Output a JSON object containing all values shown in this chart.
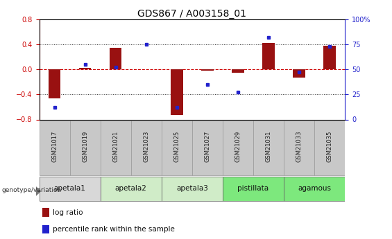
{
  "title": "GDS867 / A003158_01",
  "samples": [
    "GSM21017",
    "GSM21019",
    "GSM21021",
    "GSM21023",
    "GSM21025",
    "GSM21027",
    "GSM21029",
    "GSM21031",
    "GSM21033",
    "GSM21035"
  ],
  "log_ratio": [
    -0.46,
    0.02,
    0.34,
    0.0,
    -0.73,
    -0.02,
    -0.05,
    0.42,
    -0.13,
    0.38
  ],
  "percentile_rank": [
    12,
    55,
    52,
    75,
    12,
    35,
    27,
    82,
    47,
    73
  ],
  "groups": [
    {
      "label": "apetala1",
      "indices": [
        0,
        1
      ],
      "color": "#d8d8d8"
    },
    {
      "label": "apetala2",
      "indices": [
        2,
        3
      ],
      "color": "#d0ecc8"
    },
    {
      "label": "apetala3",
      "indices": [
        4,
        5
      ],
      "color": "#d0ecc8"
    },
    {
      "label": "pistillata",
      "indices": [
        6,
        7
      ],
      "color": "#7de87d"
    },
    {
      "label": "agamous",
      "indices": [
        8,
        9
      ],
      "color": "#7de87d"
    }
  ],
  "ylim_left": [
    -0.8,
    0.8
  ],
  "ylim_right": [
    0,
    100
  ],
  "yticks_left": [
    -0.8,
    -0.4,
    0.0,
    0.4,
    0.8
  ],
  "yticks_right": [
    0,
    25,
    50,
    75,
    100
  ],
  "ytick_labels_right": [
    "0",
    "25",
    "50",
    "75",
    "100%"
  ],
  "bar_color": "#991111",
  "dot_color": "#2222cc",
  "hline_color": "#cc0000",
  "dotted_color": "#333333",
  "sample_box_color": "#c8c8c8",
  "sample_box_edge": "#999999",
  "title_fontsize": 10,
  "tick_fontsize": 7,
  "sample_fontsize": 6,
  "group_fontsize": 7.5,
  "legend_fontsize": 7.5,
  "bar_width": 0.4
}
